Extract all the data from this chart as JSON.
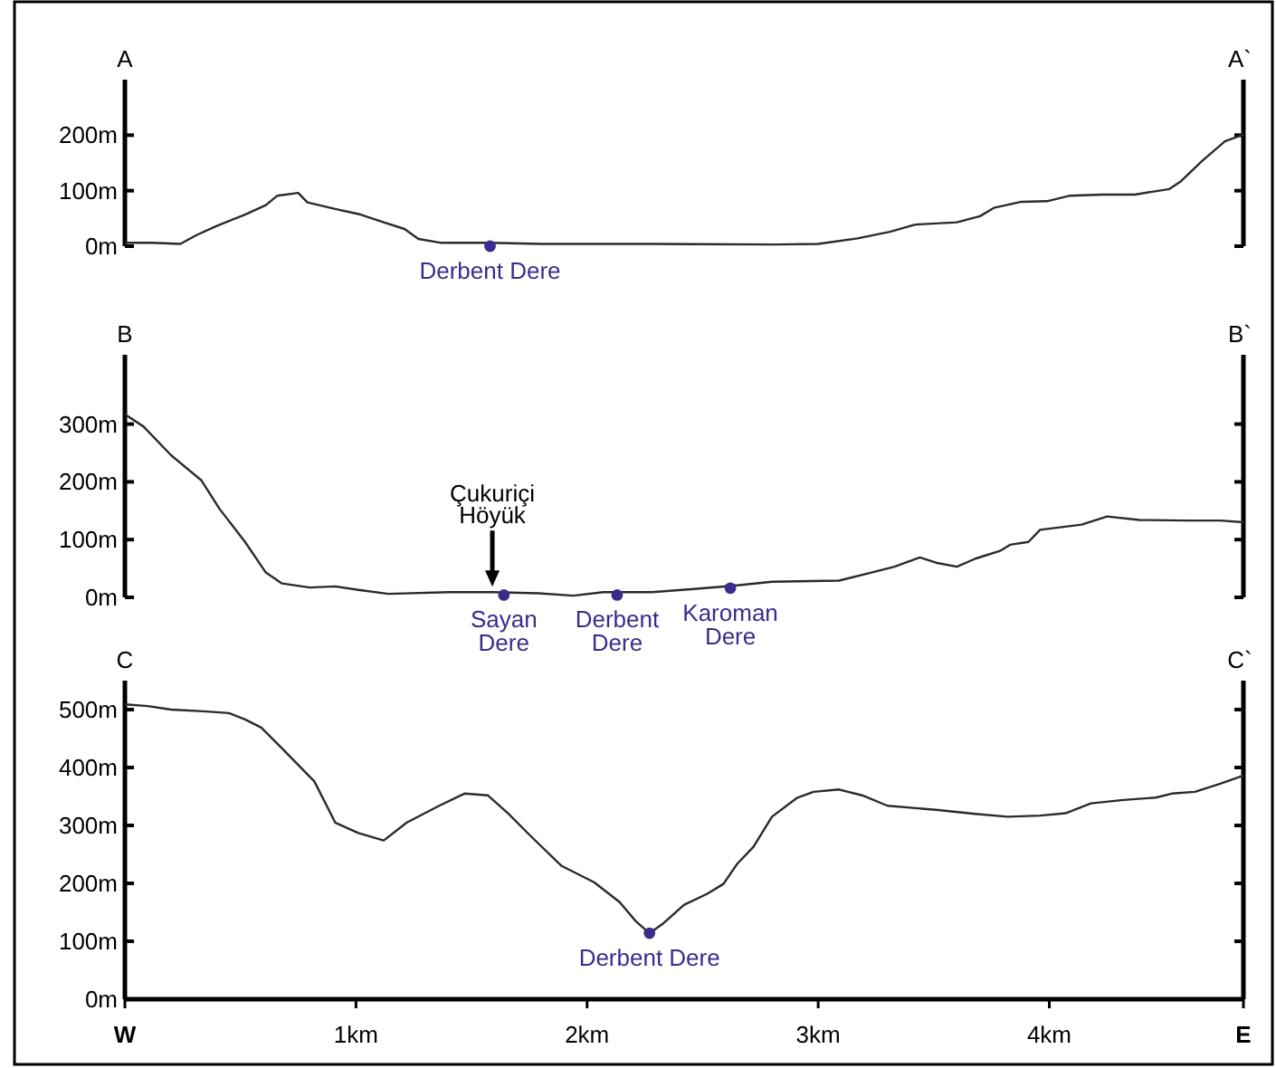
{
  "chart_data": [
    {
      "type": "line",
      "title": "A",
      "annotations": [
        "A`",
        {
          "text": "Derbent Dere",
          "x": 1.58,
          "y": 0
        }
      ],
      "xlim": [
        0,
        4.84
      ],
      "ylim": [
        0,
        300
      ],
      "yticks": [
        {
          "value": 0,
          "label": "0m"
        },
        {
          "value": 100,
          "label": "100m"
        },
        {
          "value": 200,
          "label": "200m"
        }
      ],
      "tick_labels": "y",
      "grid": false,
      "series": [
        {
          "type": "line",
          "color": "#2a2a2a",
          "x": [
            0,
            0.12,
            0.24,
            0.31,
            0.4,
            0.52,
            0.61,
            0.66,
            0.75,
            0.79,
            0.91,
            1.02,
            1.12,
            1.21,
            1.27,
            1.37,
            1.58,
            1.8,
            2.29,
            2.82,
            3.0,
            3.17,
            3.31,
            3.42,
            3.6,
            3.7,
            3.76,
            3.88,
            3.99,
            4.09,
            4.23,
            4.37,
            4.52,
            4.57,
            4.66,
            4.76,
            4.84
          ],
          "values": [
            6,
            6,
            4,
            20,
            37,
            57,
            74,
            91,
            96,
            79,
            67,
            57,
            43,
            31,
            13,
            6,
            6,
            4,
            4,
            3,
            4,
            14,
            26,
            39,
            43,
            54,
            69,
            80,
            81,
            91,
            93,
            93,
            103,
            117,
            153,
            189,
            201
          ]
        },
        {
          "type": "scatter",
          "marker": "circle",
          "color": "#3c2a8c",
          "x": [
            1.58
          ],
          "values": [
            0
          ]
        }
      ]
    },
    {
      "type": "line",
      "title": "B",
      "annotations": [
        "B`",
        {
          "text": "Çukuriçi\nHöyük",
          "x": 1.59,
          "y": 9
        },
        {
          "text": "Sayan\nDere",
          "x": 1.64,
          "y": 4
        },
        {
          "text": "Derbent\nDere",
          "x": 2.13,
          "y": 4
        },
        {
          "text": "Karoman\nDere",
          "x": 2.62,
          "y": 16
        }
      ],
      "xlim": [
        0,
        4.84
      ],
      "ylim": [
        0,
        420
      ],
      "yticks": [
        {
          "value": 0,
          "label": "0m"
        },
        {
          "value": 100,
          "label": "100m"
        },
        {
          "value": 200,
          "label": "200m"
        },
        {
          "value": 300,
          "label": "300m"
        }
      ],
      "tick_labels": "y",
      "grid": false,
      "series": [
        {
          "type": "line",
          "color": "#2a2a2a",
          "x": [
            0,
            0.08,
            0.2,
            0.33,
            0.41,
            0.52,
            0.61,
            0.68,
            0.8,
            0.91,
            1.01,
            1.14,
            1.4,
            1.59,
            1.79,
            1.94,
            2.07,
            2.28,
            2.45,
            2.63,
            2.8,
            3.09,
            3.23,
            3.33,
            3.44,
            3.51,
            3.6,
            3.68,
            3.79,
            3.83,
            3.91,
            3.96,
            4.14,
            4.25,
            4.39,
            4.6,
            4.74,
            4.84
          ],
          "values": [
            317,
            296,
            246,
            203,
            153,
            96,
            43,
            24,
            17,
            19,
            13,
            6,
            9,
            9,
            7,
            3,
            9,
            9,
            14,
            20,
            27,
            29,
            43,
            53,
            69,
            60,
            53,
            67,
            81,
            91,
            96,
            117,
            126,
            140,
            134,
            133,
            133,
            130
          ]
        },
        {
          "type": "scatter",
          "marker": "circle",
          "color": "#3c2a8c",
          "x": [
            1.64,
            2.13,
            2.62
          ],
          "values": [
            4,
            4,
            16
          ]
        }
      ]
    },
    {
      "type": "line",
      "title": "C",
      "annotations": [
        "C`",
        {
          "text": "Derbent Dere",
          "x": 2.27,
          "y": 114
        }
      ],
      "xlim": [
        0,
        4.84
      ],
      "ylim": [
        0,
        550
      ],
      "xticks": [
        {
          "value": 0,
          "label": "W"
        },
        {
          "value": 1,
          "label": "1km"
        },
        {
          "value": 2,
          "label": "2km"
        },
        {
          "value": 3,
          "label": "3km"
        },
        {
          "value": 4,
          "label": "4km"
        },
        {
          "value": 4.84,
          "label": "E"
        }
      ],
      "yticks": [
        {
          "value": 0,
          "label": "0m"
        },
        {
          "value": 100,
          "label": "100m"
        },
        {
          "value": 200,
          "label": "200m"
        },
        {
          "value": 300,
          "label": "300m"
        },
        {
          "value": 400,
          "label": "400m"
        },
        {
          "value": 500,
          "label": "500m"
        }
      ],
      "grid": false,
      "series": [
        {
          "type": "line",
          "color": "#2a2a2a",
          "x": [
            0,
            0.1,
            0.2,
            0.34,
            0.45,
            0.52,
            0.59,
            0.68,
            0.82,
            0.91,
            1.01,
            1.12,
            1.22,
            1.36,
            1.47,
            1.57,
            1.66,
            1.75,
            1.89,
            2.03,
            2.14,
            2.21,
            2.27,
            2.33,
            2.42,
            2.52,
            2.59,
            2.65,
            2.72,
            2.8,
            2.91,
            2.98,
            3.09,
            3.19,
            3.3,
            3.51,
            3.68,
            3.82,
            3.96,
            4.07,
            4.18,
            4.32,
            4.46,
            4.53,
            4.63,
            4.74,
            4.84
          ],
          "values": [
            509,
            506,
            500,
            497,
            494,
            483,
            469,
            433,
            376,
            305,
            287,
            274,
            305,
            334,
            355,
            352,
            320,
            284,
            230,
            202,
            168,
            135,
            114,
            131,
            163,
            182,
            199,
            234,
            263,
            315,
            348,
            358,
            362,
            352,
            334,
            327,
            320,
            315,
            317,
            321,
            338,
            344,
            348,
            355,
            358,
            372,
            386
          ]
        },
        {
          "type": "scatter",
          "marker": "circle",
          "color": "#3c2a8c",
          "x": [
            2.27
          ],
          "values": [
            114
          ]
        }
      ]
    }
  ]
}
